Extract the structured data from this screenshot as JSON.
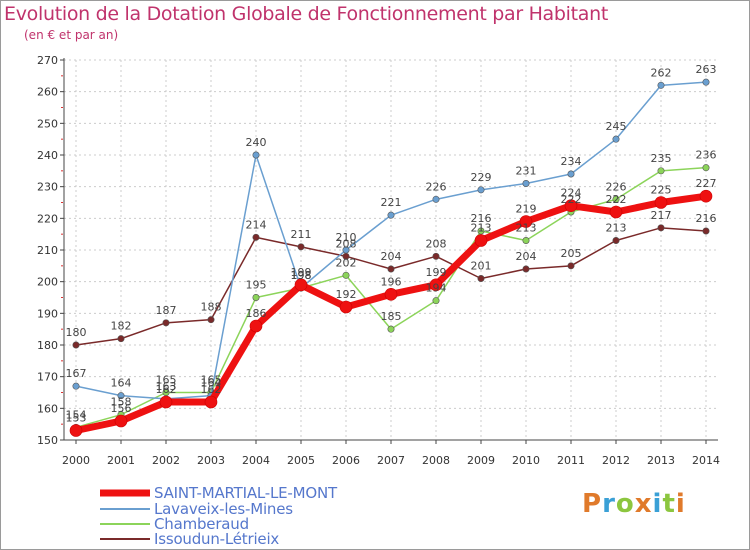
{
  "header": {
    "title": "Evolution de la Dotation Globale de Fonctionnement par Habitant",
    "subtitle": "(en € et par an)"
  },
  "logo": {
    "text": "Proxiti",
    "colors": [
      "#e07a2b",
      "#3aa0d6",
      "#8cc63f",
      "#e07a2b",
      "#3aa0d6",
      "#8cc63f",
      "#e07a2b"
    ]
  },
  "chart_data": {
    "type": "line",
    "x": [
      2000,
      2001,
      2002,
      2003,
      2004,
      2005,
      2006,
      2007,
      2008,
      2009,
      2010,
      2011,
      2012,
      2013,
      2014
    ],
    "xlim": [
      2000,
      2014
    ],
    "ylim": [
      150,
      270
    ],
    "yticks": [
      150,
      160,
      170,
      180,
      190,
      200,
      210,
      220,
      230,
      240,
      250,
      260,
      270
    ],
    "grid": true,
    "legend_position": "bottom-left",
    "series": [
      {
        "name": "SAINT-MARTIAL-LE-MONT",
        "color": "#ee1111",
        "width": 7,
        "values": [
          153,
          156,
          162,
          162,
          186,
          199,
          192,
          196,
          199,
          213,
          219,
          224,
          222,
          225,
          227
        ],
        "labels": [
          "153",
          "156",
          "162",
          "162",
          "186",
          "199",
          "192",
          "196",
          "199",
          "213",
          "219",
          "224",
          "222",
          "225",
          "227"
        ]
      },
      {
        "name": "Lavaveix-les-Mines",
        "color": "#6a9fd0",
        "width": 1.5,
        "values": [
          167,
          164,
          163,
          164,
          240,
          198,
          210,
          221,
          226,
          229,
          231,
          234,
          245,
          262,
          263
        ],
        "labels": [
          "167",
          "164",
          "163",
          "164",
          "240",
          "198",
          "210",
          "221",
          "226",
          "229",
          "231",
          "234",
          "245",
          "262",
          "263"
        ]
      },
      {
        "name": "Chamberaud",
        "color": "#8cd45a",
        "width": 1.5,
        "values": [
          154,
          158,
          165,
          165,
          195,
          198,
          202,
          185,
          194,
          216,
          213,
          222,
          226,
          235,
          236
        ],
        "labels": [
          "154",
          "158",
          "165",
          "165",
          "195",
          "198",
          "202",
          "185",
          "194",
          "216",
          "213",
          "222",
          "226",
          "235",
          "236"
        ]
      },
      {
        "name": "Issoudun-Létrieix",
        "color": "#7a2a2a",
        "width": 1.5,
        "values": [
          180,
          182,
          187,
          188,
          214,
          211,
          208,
          204,
          208,
          201,
          204,
          205,
          213,
          217,
          216
        ],
        "labels": [
          "180",
          "182",
          "187",
          "188",
          "214",
          "211",
          "208",
          "204",
          "208",
          "201",
          "204",
          "205",
          "213",
          "217",
          "216"
        ]
      }
    ]
  }
}
